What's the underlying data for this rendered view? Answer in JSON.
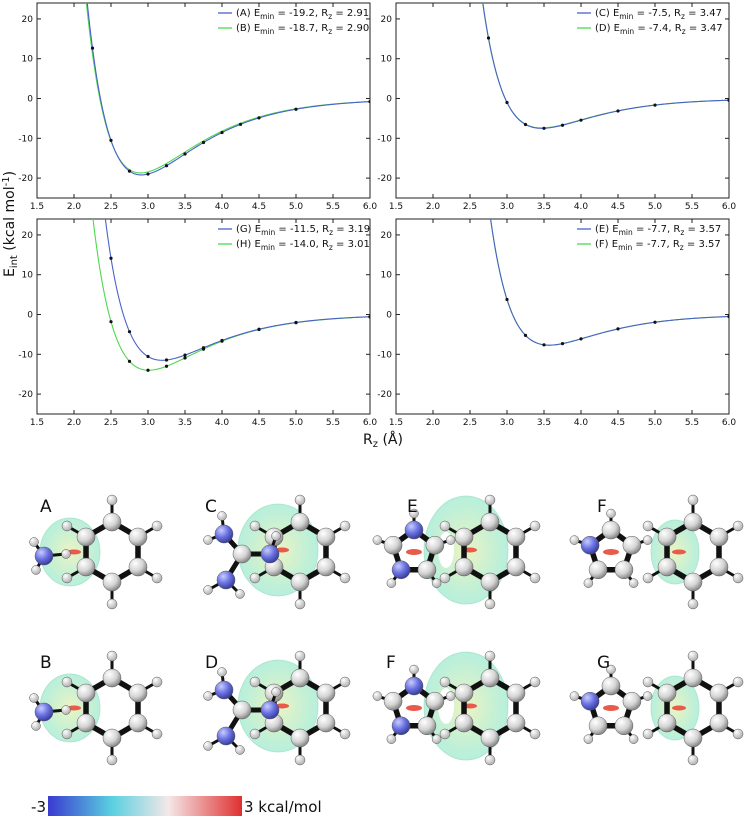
{
  "chart_data": {
    "type": "line",
    "ylabel": "E",
    "ylabel_sub": "int",
    "ylabel_unit": " (kcal mol",
    "ylabel_exp": "-1",
    "ylabel_close": ")",
    "xlabel": "R",
    "xlabel_sub": "z",
    "xlabel_unit": " (Å)",
    "xlim": [
      1.5,
      6.0
    ],
    "ylim": [
      -25,
      24
    ],
    "xticks": [
      "1.5",
      "2.0",
      "2.5",
      "3.0",
      "3.5",
      "4.0",
      "4.5",
      "5.0",
      "5.5",
      "6.0"
    ],
    "yticks": [
      "20",
      "10",
      "0",
      "-10",
      "-20"
    ],
    "grid": false,
    "legend_position": "top-right",
    "panels": [
      {
        "series": [
          {
            "name_pre": "(A) E",
            "name_sub1": "min",
            "name_mid": " = -19.2, R",
            "name_sub2": "z",
            "name_post": " = 2.91",
            "color": "#4a62c8",
            "emin": -19.2,
            "rmin": 2.91,
            "points_x": [
              2.25,
              2.5,
              2.75,
              3.0,
              3.25,
              3.5,
              3.75,
              4.0,
              4.25,
              4.5,
              5.0,
              6.0
            ]
          },
          {
            "name_pre": "(B) E",
            "name_sub1": "min",
            "name_mid": " = -18.7, R",
            "name_sub2": "z",
            "name_post": " = 2.90",
            "color": "#4ed84e",
            "emin": -18.7,
            "rmin": 2.9,
            "points_x": []
          }
        ]
      },
      {
        "series": [
          {
            "name_pre": "(C) E",
            "name_sub1": "min",
            "name_mid": " = -7.5, R",
            "name_sub2": "z",
            "name_post": " = 3.47",
            "color": "#4a62c8",
            "emin": -7.5,
            "rmin": 3.47,
            "points_x": [
              2.75,
              3.0,
              3.25,
              3.5,
              3.75,
              4.0,
              4.5,
              5.0,
              6.0
            ]
          },
          {
            "name_pre": "(D) E",
            "name_sub1": "min",
            "name_mid": " = -7.4, R",
            "name_sub2": "z",
            "name_post": " = 3.47",
            "color": "#4ed84e",
            "emin": -7.4,
            "rmin": 3.47,
            "points_x": []
          }
        ]
      },
      {
        "series": [
          {
            "name_pre": "(G) E",
            "name_sub1": "min",
            "name_mid": " = -11.5, R",
            "name_sub2": "z",
            "name_post": " = 3.19",
            "color": "#4a62c8",
            "emin": -11.5,
            "rmin": 3.19,
            "points_x": [
              2.5,
              2.75,
              3.0,
              3.25,
              3.5,
              3.75,
              4.0,
              4.5,
              5.0,
              6.0
            ]
          },
          {
            "name_pre": "(H) E",
            "name_sub1": "min",
            "name_mid": " = -14.0, R",
            "name_sub2": "z",
            "name_post": " = 3.01",
            "color": "#4ed84e",
            "emin": -14.0,
            "rmin": 3.01,
            "points_x": [
              2.5,
              2.75,
              3.0,
              3.25,
              3.5,
              3.75,
              4.0,
              4.5,
              5.0,
              6.0
            ]
          }
        ]
      },
      {
        "series": [
          {
            "name_pre": "(E) E",
            "name_sub1": "min",
            "name_mid": " = -7.7, R",
            "name_sub2": "z",
            "name_post": " = 3.57",
            "color": "#4a62c8",
            "emin": -7.7,
            "rmin": 3.57,
            "points_x": [
              2.75,
              3.0,
              3.25,
              3.5,
              3.75,
              4.0,
              4.5,
              5.0,
              6.0
            ]
          },
          {
            "name_pre": "(F) E",
            "name_sub1": "min",
            "name_mid": " = -7.7, R",
            "name_sub2": "z",
            "name_post": " = 3.57",
            "color": "#4ed84e",
            "emin": -7.7,
            "rmin": 3.57,
            "points_x": []
          }
        ]
      }
    ]
  },
  "molecules": {
    "labels": [
      "A",
      "C",
      "E",
      "F",
      "B",
      "D",
      "F",
      "G"
    ],
    "icons": [
      "benzene-ammonia-complex",
      "benzene-guanidinium-complex",
      "benzene-imidazole-complex",
      "benzene-pyrrole-complex",
      "benzene-ammonia-complex",
      "benzene-guanidinium-complex",
      "benzene-imidazole-complex",
      "benzene-pyrrole-complex"
    ]
  },
  "colorbar": {
    "min_label": "-3",
    "max_label": "3 kcal/mol",
    "colors": [
      "#3a3ad0",
      "#5ad0e0",
      "#f4e8e8",
      "#e03030"
    ]
  }
}
